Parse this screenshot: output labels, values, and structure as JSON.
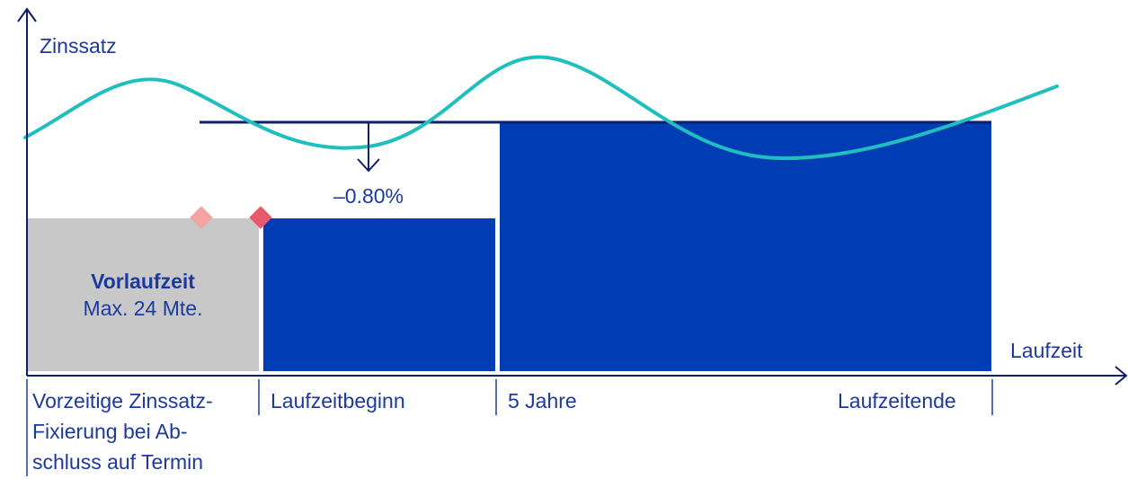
{
  "axes": {
    "y_label": "Zinssatz",
    "x_label": "Laufzeit"
  },
  "annotation": {
    "reduction": "–0.80%"
  },
  "blocks": {
    "lead_title": "Vorlaufzeit",
    "lead_subtitle": "Max. 24 Mte."
  },
  "timeline": {
    "early_fix_line1": "Vorzeitige Zinssatz-",
    "early_fix_line2": "Fixierung bei Ab-",
    "early_fix_line3": "schluss auf Termin",
    "start": "Laufzeitbeginn",
    "five_years": "5 Jahre",
    "end": "Laufzeitende"
  },
  "colors": {
    "text": "#1c3a9e",
    "axis": "#0e1f6b",
    "block": "#003cb4",
    "lead_block": "#c8c8c8",
    "curve": "#1fbfbf",
    "marker_light": "#f4a3a3",
    "marker_dark": "#e8596b"
  }
}
